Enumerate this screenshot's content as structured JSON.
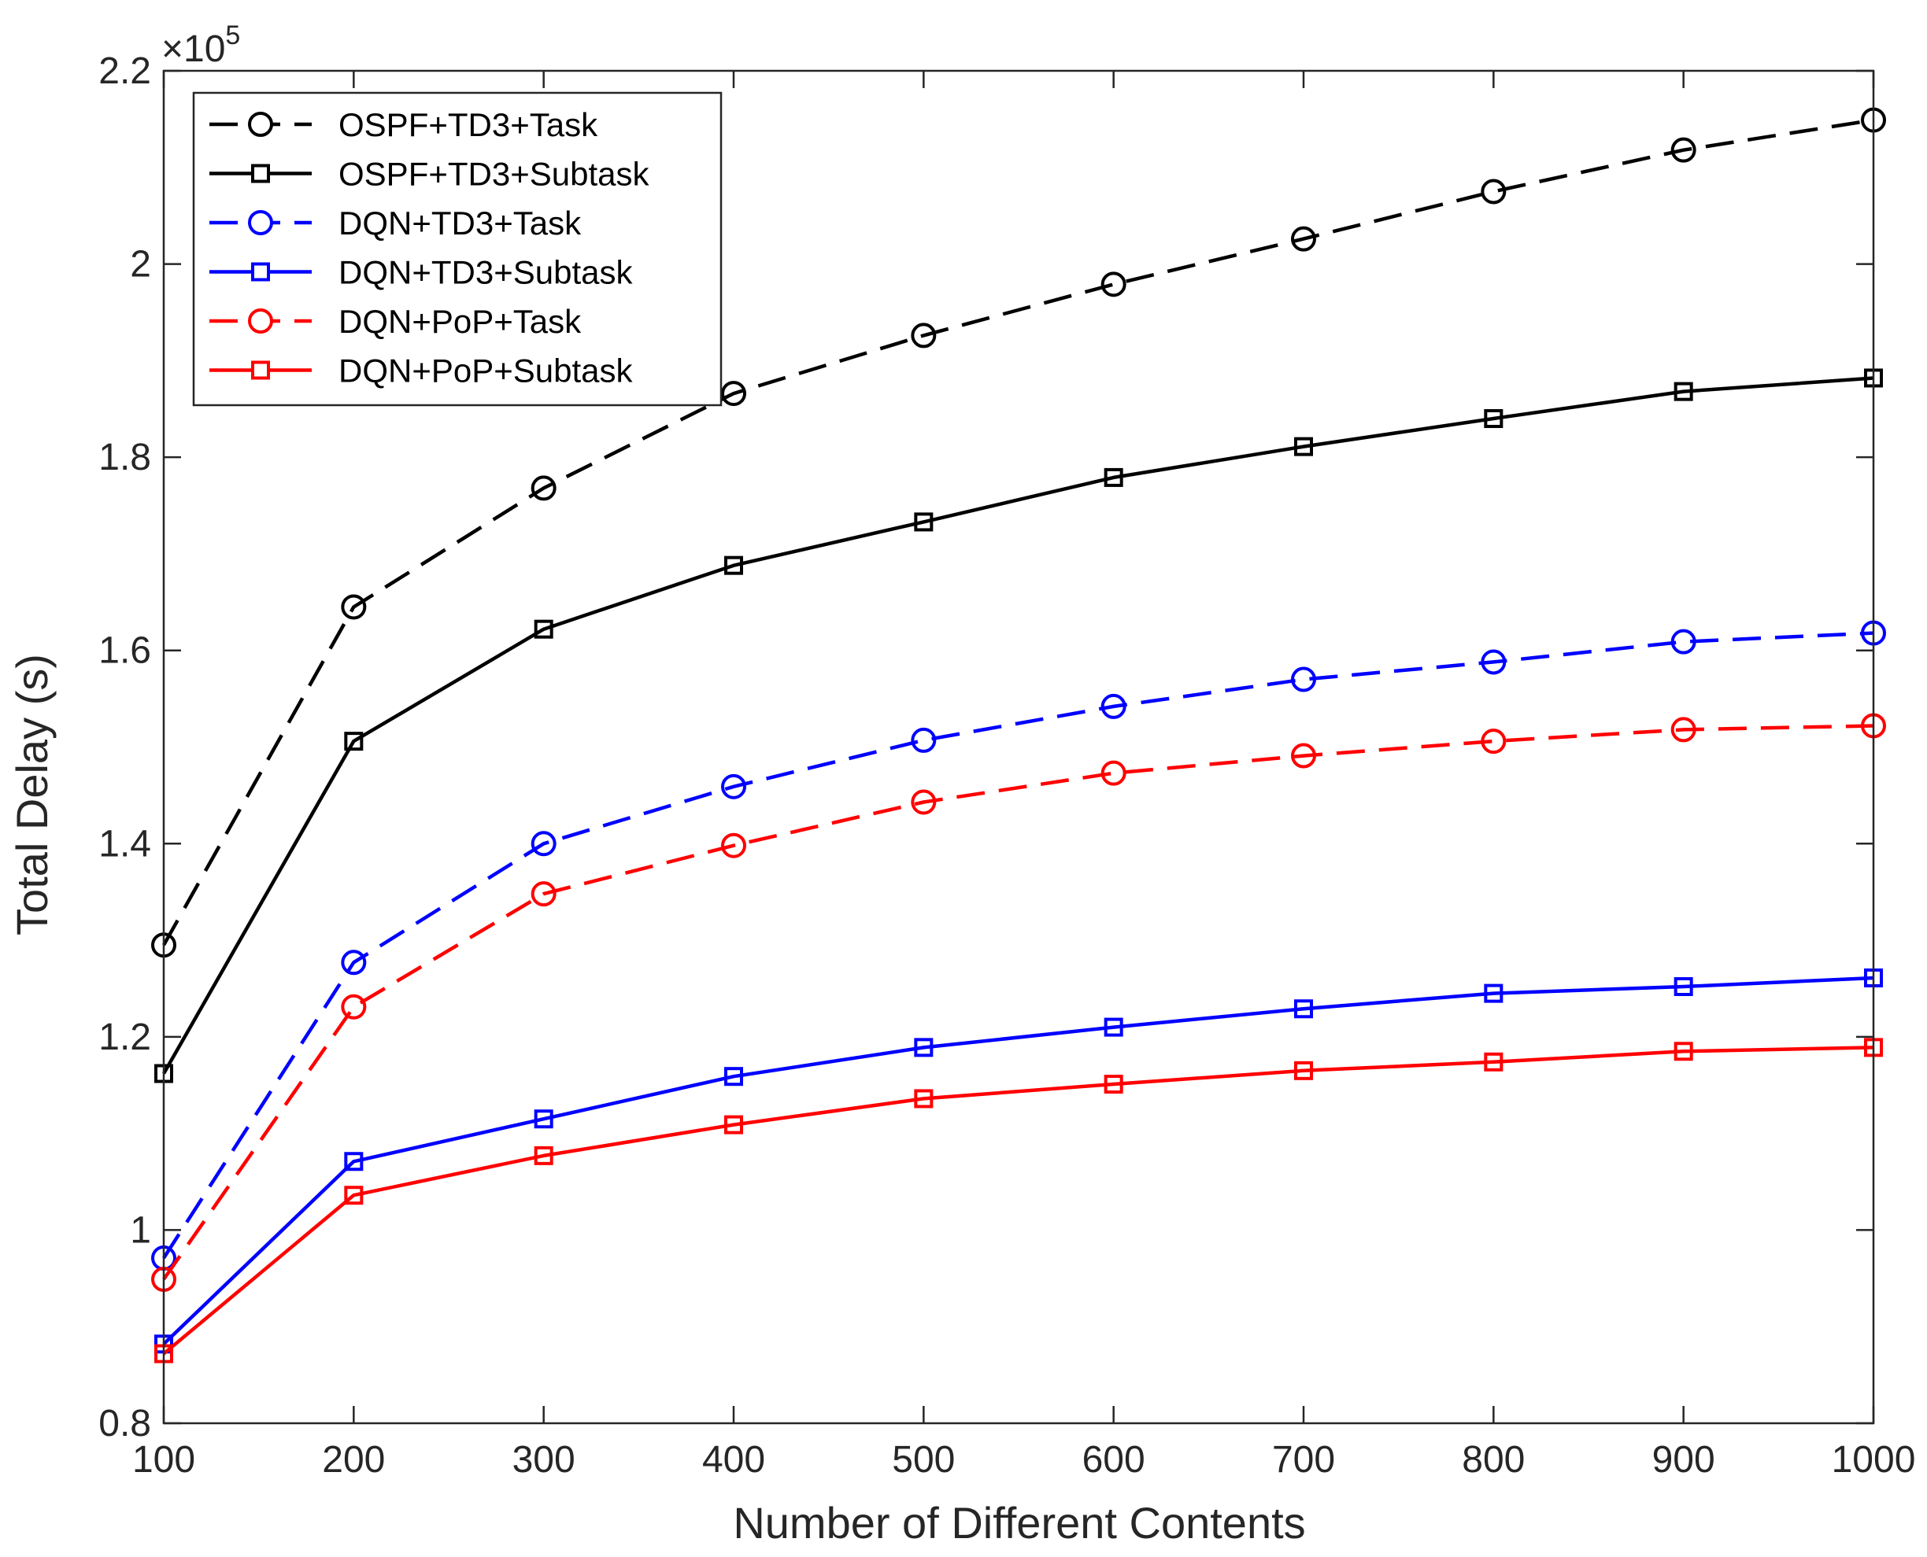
{
  "chart_data": {
    "type": "line",
    "title": "",
    "xlabel": "Number of Different Contents",
    "ylabel": "Total Delay (s)",
    "y_multiplier": {
      "base": "×10",
      "exponent": "5"
    },
    "x": [
      100,
      200,
      300,
      400,
      500,
      600,
      700,
      800,
      900,
      1000
    ],
    "xlim": [
      100,
      1000
    ],
    "ylim": [
      0.8,
      2.2
    ],
    "x_ticks": [
      "100",
      "200",
      "300",
      "400",
      "500",
      "600",
      "700",
      "800",
      "900",
      "1000"
    ],
    "y_ticks": [
      "0.8",
      "1",
      "1.2",
      "1.4",
      "1.6",
      "1.8",
      "2",
      "2.2"
    ],
    "y_tick_values": [
      0.8,
      1.0,
      1.2,
      1.4,
      1.6,
      1.8,
      2.0,
      2.2
    ],
    "grid": false,
    "legend_position": "top-left",
    "series": [
      {
        "name": "OSPF+TD3+Task",
        "color": "#000000",
        "dash": "dashed",
        "marker": "circle",
        "values": [
          1.295,
          1.645,
          1.768,
          1.866,
          1.926,
          1.979,
          2.026,
          2.075,
          2.118,
          2.149
        ]
      },
      {
        "name": "OSPF+TD3+Subtask",
        "color": "#000000",
        "dash": "solid",
        "marker": "square",
        "values": [
          1.162,
          1.506,
          1.622,
          1.688,
          1.733,
          1.779,
          1.811,
          1.84,
          1.868,
          1.882
        ]
      },
      {
        "name": "DQN+TD3+Task",
        "color": "#0000ff",
        "dash": "dashed",
        "marker": "circle",
        "values": [
          0.971,
          1.277,
          1.4,
          1.459,
          1.507,
          1.542,
          1.57,
          1.588,
          1.609,
          1.618
        ]
      },
      {
        "name": "DQN+TD3+Subtask",
        "color": "#0000ff",
        "dash": "solid",
        "marker": "square",
        "values": [
          0.882,
          1.071,
          1.115,
          1.159,
          1.189,
          1.21,
          1.229,
          1.245,
          1.252,
          1.261
        ]
      },
      {
        "name": "DQN+PoP+Task",
        "color": "#ff0000",
        "dash": "dashed",
        "marker": "circle",
        "values": [
          0.949,
          1.231,
          1.348,
          1.398,
          1.443,
          1.473,
          1.491,
          1.506,
          1.518,
          1.522
        ]
      },
      {
        "name": "DQN+PoP+Subtask",
        "color": "#ff0000",
        "dash": "solid",
        "marker": "square",
        "values": [
          0.872,
          1.036,
          1.077,
          1.109,
          1.136,
          1.151,
          1.165,
          1.174,
          1.185,
          1.189
        ]
      }
    ]
  }
}
